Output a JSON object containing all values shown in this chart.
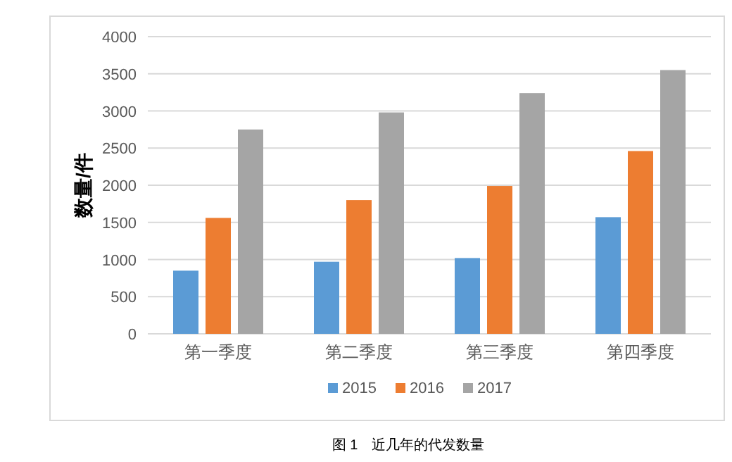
{
  "chart_data": {
    "type": "bar",
    "ylabel": "数量/件",
    "categories": [
      "第一季度",
      "第二季度",
      "第三季度",
      "第四季度"
    ],
    "series": [
      {
        "name": "2015",
        "color": "#5b9bd5",
        "values": [
          850,
          970,
          1020,
          1570
        ]
      },
      {
        "name": "2016",
        "color": "#ed7d31",
        "values": [
          1560,
          1800,
          1990,
          2460
        ]
      },
      {
        "name": "2017",
        "color": "#a5a5a5",
        "values": [
          2750,
          2980,
          3240,
          3550
        ]
      }
    ],
    "ylim": [
      0,
      4000
    ],
    "yticks": [
      0,
      500,
      1000,
      1500,
      2000,
      2500,
      3000,
      3500,
      4000
    ],
    "grid": "y",
    "legend": "bottom",
    "annotations": [
      "图 1　近几年的代发数量"
    ]
  }
}
